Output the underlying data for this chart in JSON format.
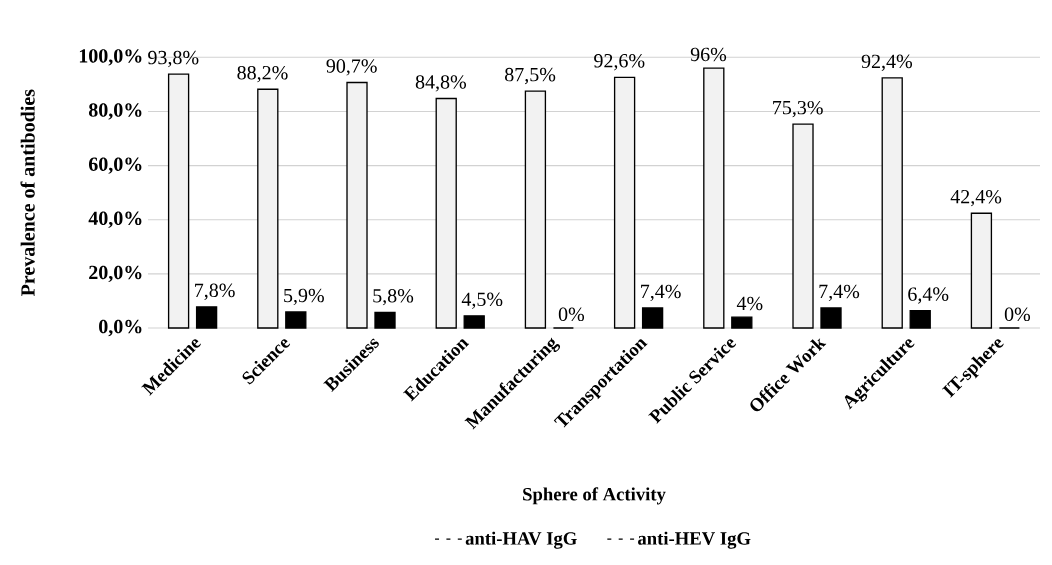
{
  "chart_data": {
    "type": "bar",
    "xlabel": "Sphere of Activity",
    "ylabel": "Prevalence of antibodies",
    "categories": [
      "Medicine",
      "Science",
      "Business",
      "Education",
      "Manufacturing",
      "Transportation",
      "Public Service",
      "Office Work",
      "Agriculture",
      "IT-sphere"
    ],
    "series": [
      {
        "name": "anti-HAV IgG",
        "color": "#f2f2f2",
        "values": [
          93.8,
          88.2,
          90.7,
          84.8,
          87.5,
          92.6,
          96,
          75.3,
          92.4,
          42.4
        ],
        "value_labels": [
          "93,8%",
          "88,2%",
          "90,7%",
          "84,8%",
          "87,5%",
          "92,6%",
          "96%",
          "75,3%",
          "92,4%",
          "42,4%"
        ]
      },
      {
        "name": "anti-HEV IgG",
        "color": "#000000",
        "values": [
          7.8,
          5.9,
          5.8,
          4.5,
          0,
          7.4,
          4,
          7.4,
          6.4,
          0
        ],
        "value_labels": [
          "7,8%",
          "5,9%",
          "5,8%",
          "4,5%",
          "0%",
          "7,4%",
          "4%",
          "7,4%",
          "6,4%",
          "0%"
        ]
      }
    ],
    "ylim": [
      0,
      100
    ],
    "yticks": [
      {
        "value": 0,
        "label": "0,0%"
      },
      {
        "value": 20,
        "label": "20,0%"
      },
      {
        "value": 40,
        "label": "40,0%"
      },
      {
        "value": 60,
        "label": "60,0%"
      },
      {
        "value": 80,
        "label": "80,0%"
      },
      {
        "value": 100,
        "label": "100,0%"
      }
    ],
    "grid": "y",
    "legend": "bottom"
  }
}
